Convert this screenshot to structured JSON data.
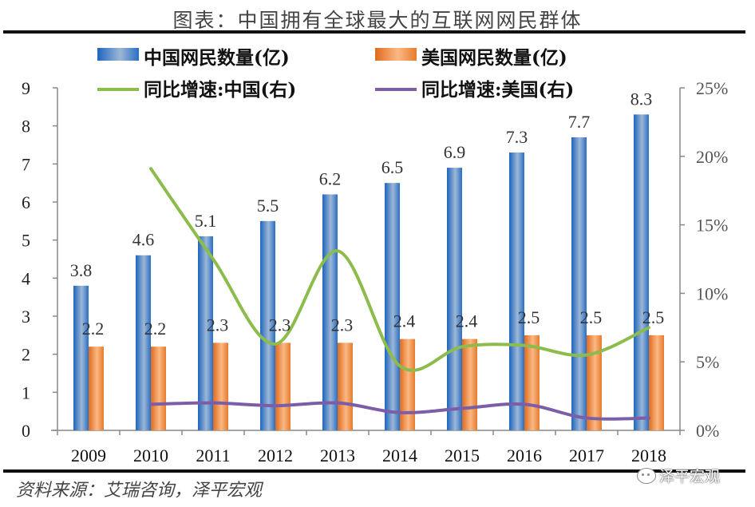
{
  "header": {
    "title": "图表：中国拥有全球最大的互联网网民群体"
  },
  "footer": {
    "source": "资料来源：艾瑞咨询，泽平宏观",
    "watermark": "泽平宏观",
    "watermark_icon": "wechat-icon"
  },
  "colors": {
    "china_bar": "#2e75c6",
    "us_bar": "#f08a3c",
    "china_line": "#8cbc4c",
    "us_line": "#7b5ea7",
    "axis": "#888888"
  },
  "chart_data": {
    "type": "bar",
    "title": "图表：中国拥有全球最大的互联网网民群体",
    "categories": [
      "2009",
      "2010",
      "2011",
      "2012",
      "2013",
      "2014",
      "2015",
      "2016",
      "2017",
      "2018"
    ],
    "series": [
      {
        "name": "中国网民数量(亿)",
        "type": "bar",
        "axis": "left",
        "values": [
          3.8,
          4.6,
          5.1,
          5.5,
          6.2,
          6.5,
          6.9,
          7.3,
          7.7,
          8.3
        ],
        "labels": [
          "3.8",
          "4.6",
          "5.1",
          "5.5",
          "6.2",
          "6.5",
          "6.9",
          "7.3",
          "7.7",
          "8.3"
        ]
      },
      {
        "name": "美国网民数量(亿)",
        "type": "bar",
        "axis": "left",
        "values": [
          2.2,
          2.2,
          2.3,
          2.3,
          2.3,
          2.4,
          2.4,
          2.5,
          2.5,
          2.5
        ],
        "labels": [
          "2.2",
          "2.2",
          "2.3",
          "2.3",
          "2.3",
          "2.4",
          "2.4",
          "2.5",
          "2.5",
          "2.5"
        ]
      },
      {
        "name": "同比增速:中国(右)",
        "type": "line",
        "axis": "right",
        "values": [
          null,
          19.1,
          12.5,
          6.3,
          13.1,
          4.7,
          6.1,
          6.2,
          5.5,
          7.5
        ]
      },
      {
        "name": "同比增速:美国(右)",
        "type": "line",
        "axis": "right",
        "values": [
          null,
          1.9,
          2.0,
          1.8,
          2.0,
          1.3,
          1.6,
          1.9,
          0.9,
          0.9
        ]
      }
    ],
    "y_left": {
      "range": [
        0,
        9
      ],
      "ticks": [
        "0",
        "1",
        "2",
        "3",
        "4",
        "5",
        "6",
        "7",
        "8",
        "9"
      ]
    },
    "y_right": {
      "range": [
        0,
        25
      ],
      "unit": "%",
      "ticks": [
        "0%",
        "5%",
        "10%",
        "15%",
        "20%",
        "25%"
      ]
    },
    "xlabel": "",
    "ylabel": "",
    "grid": false,
    "legend_position": "top"
  }
}
